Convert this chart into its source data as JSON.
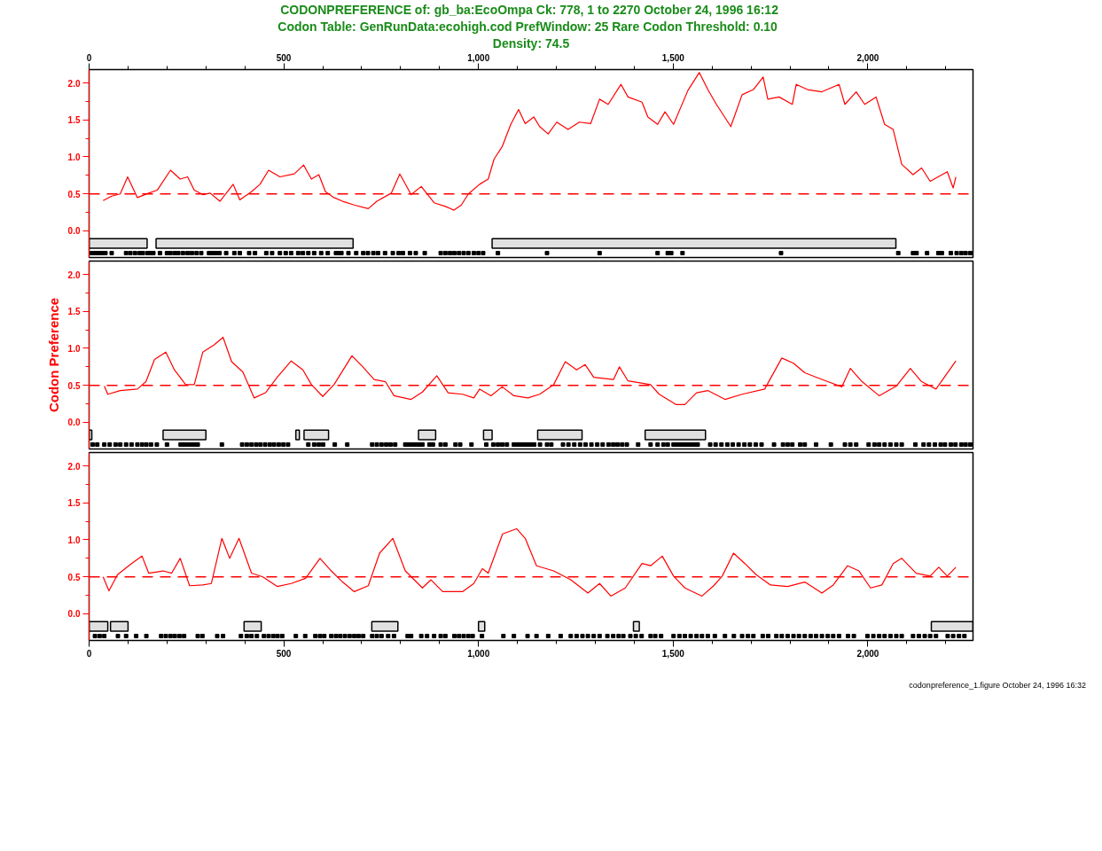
{
  "chart_data": [
    {
      "type": "line",
      "title": "CODONPREFERENCE of: gb_ba:EcoOmpa Ck: 778, 1 to 2270  October 24, 1996 16:12",
      "subtitle": "Codon Table: GenRunData:ecohigh.cod  PrefWindow: 25  Rare Codon Threshold: 0.10",
      "annotations": [
        "Density: 74.5"
      ],
      "xlim": [
        0,
        2270
      ],
      "x2lim": [
        0,
        2270
      ],
      "x2ticks": [
        0,
        {
          "value": 100,
          "label": null
        },
        {
          "value": 200,
          "label": null
        },
        {
          "value": 300,
          "label": null
        },
        {
          "value": 400,
          "label": null
        },
        500,
        {
          "value": 600,
          "label": null
        },
        {
          "value": 700,
          "label": null
        },
        {
          "value": 800,
          "label": null
        },
        {
          "value": 900,
          "label": null
        },
        {
          "value": 1000,
          "label": "1,000"
        },
        {
          "value": 1100,
          "label": null
        },
        {
          "value": 1200,
          "label": null
        },
        {
          "value": 1300,
          "label": null
        },
        {
          "value": 1400,
          "label": null
        },
        {
          "value": 1500,
          "label": "1,500"
        },
        {
          "value": 1600,
          "label": null
        },
        {
          "value": 1700,
          "label": null
        },
        {
          "value": 1800,
          "label": null
        },
        {
          "value": 1900,
          "label": null
        },
        {
          "value": 2000,
          "label": "2,000"
        },
        {
          "value": 2100,
          "label": null
        },
        {
          "value": 2200,
          "label": null
        }
      ],
      "ylim": [
        -0.36,
        2.18
      ],
      "yticks": [
        {
          "value": 0,
          "label": "0.0"
        },
        {
          "value": 0.25,
          "label": null
        },
        {
          "value": 0.5,
          "label": "0.5"
        },
        {
          "value": 0.75,
          "label": null
        },
        {
          "value": 1,
          "label": "1.0"
        },
        {
          "value": 1.25,
          "label": null
        },
        {
          "value": 1.5,
          "label": "1.5"
        },
        {
          "value": 1.75,
          "label": null
        },
        {
          "value": 2,
          "label": "2.0"
        }
      ],
      "ref_lines": [
        {
          "axis": "y",
          "value": 0.5,
          "color": "#ff0000",
          "line_style": "dashed"
        }
      ],
      "bands": [
        {
          "axis": "x",
          "from": 0,
          "to": 149,
          "color": "#000000"
        },
        {
          "axis": "x",
          "from": 172,
          "to": 678,
          "color": "#000000"
        },
        {
          "axis": "x",
          "from": 1035,
          "to": 2072,
          "color": "#000000"
        }
      ],
      "series": [
        {
          "type": "line",
          "color": "#ff0000",
          "x": [
            36,
            58,
            80,
            99,
            124,
            153,
            175,
            209,
            234,
            253,
            270,
            292,
            311,
            336,
            370,
            387,
            417,
            439,
            461,
            490,
            527,
            551,
            571,
            590,
            607,
            629,
            651,
            681,
            717,
            739,
            776,
            798,
            827,
            853,
            886,
            915,
            937,
            956,
            974,
            1003,
            1025,
            1040,
            1061,
            1083,
            1103,
            1120,
            1142,
            1157,
            1179,
            1201,
            1230,
            1259,
            1288,
            1311,
            1333,
            1366,
            1384,
            1420,
            1435,
            1460,
            1479,
            1501,
            1538,
            1567,
            1589,
            1611,
            1648,
            1677,
            1706,
            1731,
            1743,
            1772,
            1806,
            1816,
            1845,
            1882,
            1926,
            1941,
            1970,
            1992,
            2021,
            2043,
            2065,
            2087,
            2116,
            2138,
            2160,
            2204,
            2219,
            2226
          ],
          "values": [
            0.41,
            0.47,
            0.5,
            0.73,
            0.45,
            0.51,
            0.55,
            0.82,
            0.7,
            0.73,
            0.55,
            0.49,
            0.51,
            0.4,
            0.63,
            0.42,
            0.53,
            0.63,
            0.82,
            0.73,
            0.77,
            0.89,
            0.7,
            0.76,
            0.53,
            0.45,
            0.4,
            0.35,
            0.3,
            0.4,
            0.51,
            0.77,
            0.49,
            0.6,
            0.38,
            0.33,
            0.28,
            0.35,
            0.5,
            0.63,
            0.7,
            0.97,
            1.14,
            1.44,
            1.64,
            1.45,
            1.54,
            1.41,
            1.31,
            1.47,
            1.37,
            1.47,
            1.45,
            1.78,
            1.71,
            1.98,
            1.81,
            1.74,
            1.54,
            1.44,
            1.61,
            1.44,
            1.9,
            2.14,
            1.91,
            1.71,
            1.41,
            1.84,
            1.91,
            2.08,
            1.78,
            1.81,
            1.71,
            1.98,
            1.91,
            1.88,
            1.98,
            1.71,
            1.88,
            1.71,
            1.81,
            1.44,
            1.37,
            0.9,
            0.76,
            0.85,
            0.67,
            0.8,
            0.58,
            0.73
          ]
        },
        {
          "type": "scatter",
          "marker": "square",
          "color": "#000000",
          "x": [
            7,
            15,
            24,
            33,
            42,
            58,
            95,
            106,
            118,
            130,
            138,
            150,
            156,
            165,
            182,
            200,
            209,
            220,
            229,
            241,
            253,
            264,
            276,
            288,
            308,
            317,
            326,
            335,
            352,
            373,
            387,
            411,
            426,
            455,
            470,
            490,
            505,
            519,
            537,
            549,
            563,
            578,
            596,
            613,
            634,
            640,
            648,
            666,
            686,
            704,
            716,
            730,
            742,
            760,
            780,
            795,
            806,
            824,
            839,
            862,
            903,
            915,
            927,
            938,
            950,
            962,
            974,
            988,
            1000,
            1012,
            1050,
            1176,
            1311,
            1460,
            1486,
            1495,
            1524,
            1777,
            2078,
            2116,
            2125,
            2152,
            2181,
            2190,
            2213,
            2228,
            2240,
            2251,
            2263
          ],
          "values": [
            -0.3,
            -0.3,
            -0.3,
            -0.3,
            -0.3,
            -0.3,
            -0.3,
            -0.3,
            -0.3,
            -0.3,
            -0.3,
            -0.3,
            -0.3,
            -0.3,
            -0.3,
            -0.3,
            -0.3,
            -0.3,
            -0.3,
            -0.3,
            -0.3,
            -0.3,
            -0.3,
            -0.3,
            -0.3,
            -0.3,
            -0.3,
            -0.3,
            -0.3,
            -0.3,
            -0.3,
            -0.3,
            -0.3,
            -0.3,
            -0.3,
            -0.3,
            -0.3,
            -0.3,
            -0.3,
            -0.3,
            -0.3,
            -0.3,
            -0.3,
            -0.3,
            -0.3,
            -0.3,
            -0.3,
            -0.3,
            -0.3,
            -0.3,
            -0.3,
            -0.3,
            -0.3,
            -0.3,
            -0.3,
            -0.3,
            -0.3,
            -0.3,
            -0.3,
            -0.3,
            -0.3,
            -0.3,
            -0.3,
            -0.3,
            -0.3,
            -0.3,
            -0.3,
            -0.3,
            -0.3,
            -0.3,
            -0.3,
            -0.3,
            -0.3,
            -0.3,
            -0.3,
            -0.3,
            -0.3,
            -0.3,
            -0.3,
            -0.3,
            -0.3,
            -0.3,
            -0.3,
            -0.3,
            -0.3,
            -0.3,
            -0.3,
            -0.3,
            -0.3
          ]
        }
      ]
    },
    {
      "type": "line",
      "ylabel": "Codon Preference",
      "tick_labels": "y",
      "xlim": [
        0,
        2270
      ],
      "ylim": [
        -0.36,
        2.18
      ],
      "yticks": [
        {
          "value": 0,
          "label": "0.0"
        },
        {
          "value": 0.25,
          "label": null
        },
        {
          "value": 0.5,
          "label": "0.5"
        },
        {
          "value": 0.75,
          "label": null
        },
        {
          "value": 1,
          "label": "1.0"
        },
        {
          "value": 1.25,
          "label": null
        },
        {
          "value": 1.5,
          "label": "1.5"
        },
        {
          "value": 1.75,
          "label": null
        },
        {
          "value": 2,
          "label": "2.0"
        }
      ],
      "ref_lines": [
        {
          "axis": "y",
          "value": 0.5,
          "color": "#ff0000",
          "line_style": "dashed"
        }
      ],
      "bands": [
        {
          "axis": "x",
          "from": 0,
          "to": 7,
          "color": "#000000"
        },
        {
          "axis": "x",
          "from": 190,
          "to": 300,
          "color": "#000000"
        },
        {
          "axis": "x",
          "from": 531,
          "to": 540,
          "color": "#000000"
        },
        {
          "axis": "x",
          "from": 552,
          "to": 615,
          "color": "#000000"
        },
        {
          "axis": "x",
          "from": 846,
          "to": 890,
          "color": "#000000"
        },
        {
          "axis": "x",
          "from": 1013,
          "to": 1035,
          "color": "#000000"
        },
        {
          "axis": "x",
          "from": 1152,
          "to": 1266,
          "color": "#000000"
        },
        {
          "axis": "x",
          "from": 1428,
          "to": 1583,
          "color": "#000000"
        }
      ],
      "series": [
        {
          "type": "line",
          "color": "#ff0000",
          "x": [
            39,
            48,
            80,
            124,
            146,
            168,
            197,
            219,
            248,
            270,
            292,
            322,
            344,
            366,
            395,
            424,
            453,
            483,
            519,
            549,
            571,
            600,
            629,
            675,
            703,
            732,
            761,
            783,
            827,
            856,
            893,
            922,
            959,
            988,
            1003,
            1032,
            1061,
            1091,
            1127,
            1157,
            1193,
            1223,
            1252,
            1274,
            1296,
            1347,
            1362,
            1384,
            1442,
            1464,
            1508,
            1530,
            1560,
            1589,
            1633,
            1677,
            1735,
            1779,
            1809,
            1838,
            1867,
            1897,
            1933,
            1955,
            1985,
            2029,
            2073,
            2109,
            2138,
            2175,
            2226
          ],
          "values": [
            0.49,
            0.38,
            0.43,
            0.45,
            0.55,
            0.85,
            0.95,
            0.71,
            0.51,
            0.51,
            0.95,
            1.05,
            1.15,
            0.82,
            0.68,
            0.33,
            0.4,
            0.61,
            0.83,
            0.71,
            0.51,
            0.35,
            0.51,
            0.9,
            0.75,
            0.58,
            0.55,
            0.36,
            0.31,
            0.41,
            0.63,
            0.4,
            0.38,
            0.33,
            0.45,
            0.36,
            0.48,
            0.36,
            0.33,
            0.38,
            0.51,
            0.82,
            0.71,
            0.78,
            0.61,
            0.58,
            0.75,
            0.56,
            0.51,
            0.38,
            0.24,
            0.24,
            0.4,
            0.43,
            0.31,
            0.38,
            0.45,
            0.87,
            0.8,
            0.67,
            0.61,
            0.55,
            0.48,
            0.73,
            0.55,
            0.36,
            0.49,
            0.73,
            0.55,
            0.45,
            0.83
          ]
        },
        {
          "type": "scatter",
          "marker": "square",
          "color": "#000000",
          "x": [
            9,
            21,
            39,
            53,
            68,
            80,
            95,
            109,
            124,
            136,
            147,
            159,
            174,
            200,
            235,
            244,
            253,
            262,
            270,
            279,
            341,
            393,
            405,
            417,
            429,
            440,
            452,
            464,
            475,
            487,
            499,
            511,
            563,
            578,
            590,
            601,
            631,
            663,
            727,
            739,
            751,
            763,
            774,
            786,
            812,
            821,
            830,
            839,
            848,
            856,
            874,
            883,
            903,
            915,
            941,
            953,
            982,
            1020,
            1038,
            1050,
            1061,
            1073,
            1091,
            1100,
            1108,
            1117,
            1126,
            1135,
            1143,
            1158,
            1176,
            1187,
            1217,
            1231,
            1246,
            1261,
            1275,
            1290,
            1305,
            1319,
            1334,
            1346,
            1357,
            1369,
            1381,
            1410,
            1442,
            1460,
            1475,
            1486,
            1501,
            1510,
            1519,
            1527,
            1536,
            1545,
            1554,
            1563,
            1595,
            1609,
            1624,
            1639,
            1653,
            1668,
            1683,
            1697,
            1712,
            1727,
            1759,
            1782,
            1794,
            1806,
            1826,
            1838,
            1867,
            1905,
            1941,
            1955,
            1970,
            2002,
            2017,
            2029,
            2043,
            2058,
            2073,
            2087,
            2122,
            2143,
            2157,
            2172,
            2187,
            2198,
            2213,
            2225,
            2240,
            2251,
            2263
          ],
          "values": [
            -0.3,
            -0.3,
            -0.3,
            -0.3,
            -0.3,
            -0.3,
            -0.3,
            -0.3,
            -0.3,
            -0.3,
            -0.3,
            -0.3,
            -0.3,
            -0.3,
            -0.3,
            -0.3,
            -0.3,
            -0.3,
            -0.3,
            -0.3,
            -0.3,
            -0.3,
            -0.3,
            -0.3,
            -0.3,
            -0.3,
            -0.3,
            -0.3,
            -0.3,
            -0.3,
            -0.3,
            -0.3,
            -0.3,
            -0.3,
            -0.3,
            -0.3,
            -0.3,
            -0.3,
            -0.3,
            -0.3,
            -0.3,
            -0.3,
            -0.3,
            -0.3,
            -0.3,
            -0.3,
            -0.3,
            -0.3,
            -0.3,
            -0.3,
            -0.3,
            -0.3,
            -0.3,
            -0.3,
            -0.3,
            -0.3,
            -0.3,
            -0.3,
            -0.3,
            -0.3,
            -0.3,
            -0.3,
            -0.3,
            -0.3,
            -0.3,
            -0.3,
            -0.3,
            -0.3,
            -0.3,
            -0.3,
            -0.3,
            -0.3,
            -0.3,
            -0.3,
            -0.3,
            -0.3,
            -0.3,
            -0.3,
            -0.3,
            -0.3,
            -0.3,
            -0.3,
            -0.3,
            -0.3,
            -0.3,
            -0.3,
            -0.3,
            -0.3,
            -0.3,
            -0.3,
            -0.3,
            -0.3,
            -0.3,
            -0.3,
            -0.3,
            -0.3,
            -0.3,
            -0.3,
            -0.3,
            -0.3,
            -0.3,
            -0.3,
            -0.3,
            -0.3,
            -0.3,
            -0.3,
            -0.3,
            -0.3,
            -0.3,
            -0.3,
            -0.3,
            -0.3,
            -0.3,
            -0.3,
            -0.3,
            -0.3,
            -0.3,
            -0.3,
            -0.3,
            -0.3,
            -0.3,
            -0.3,
            -0.3,
            -0.3,
            -0.3,
            -0.3,
            -0.3,
            -0.3,
            -0.3,
            -0.3,
            -0.3,
            -0.3,
            -0.3,
            -0.3,
            -0.3,
            -0.3,
            -0.3
          ]
        }
      ]
    },
    {
      "type": "line",
      "xlim": [
        0,
        2270
      ],
      "xticks": [
        0,
        {
          "value": 100,
          "label": null
        },
        {
          "value": 200,
          "label": null
        },
        {
          "value": 300,
          "label": null
        },
        {
          "value": 400,
          "label": null
        },
        500,
        {
          "value": 600,
          "label": null
        },
        {
          "value": 700,
          "label": null
        },
        {
          "value": 800,
          "label": null
        },
        {
          "value": 900,
          "label": null
        },
        {
          "value": 1000,
          "label": "1,000"
        },
        {
          "value": 1100,
          "label": null
        },
        {
          "value": 1200,
          "label": null
        },
        {
          "value": 1300,
          "label": null
        },
        {
          "value": 1400,
          "label": null
        },
        {
          "value": 1500,
          "label": "1,500"
        },
        {
          "value": 1600,
          "label": null
        },
        {
          "value": 1700,
          "label": null
        },
        {
          "value": 1800,
          "label": null
        },
        {
          "value": 1900,
          "label": null
        },
        {
          "value": 2000,
          "label": "2,000"
        },
        {
          "value": 2100,
          "label": null
        },
        {
          "value": 2200,
          "label": null
        }
      ],
      "ylim": [
        -0.36,
        2.18
      ],
      "yticks": [
        {
          "value": 0,
          "label": "0.0"
        },
        {
          "value": 0.25,
          "label": null
        },
        {
          "value": 0.5,
          "label": "0.5"
        },
        {
          "value": 0.75,
          "label": null
        },
        {
          "value": 1,
          "label": "1.0"
        },
        {
          "value": 1.25,
          "label": null
        },
        {
          "value": 1.5,
          "label": "1.5"
        },
        {
          "value": 1.75,
          "label": null
        },
        {
          "value": 2,
          "label": "2.0"
        }
      ],
      "ref_lines": [
        {
          "axis": "y",
          "value": 0.5,
          "color": "#ff0000",
          "line_style": "dashed"
        }
      ],
      "bands": [
        {
          "axis": "x",
          "from": 0,
          "to": 48,
          "color": "#000000"
        },
        {
          "axis": "x",
          "from": 55,
          "to": 100,
          "color": "#000000"
        },
        {
          "axis": "x",
          "from": 398,
          "to": 442,
          "color": "#000000"
        },
        {
          "axis": "x",
          "from": 726,
          "to": 793,
          "color": "#000000"
        },
        {
          "axis": "x",
          "from": 1000,
          "to": 1016,
          "color": "#000000"
        },
        {
          "axis": "x",
          "from": 1398,
          "to": 1413,
          "color": "#000000"
        },
        {
          "axis": "x",
          "from": 2163,
          "to": 2270,
          "color": "#000000"
        }
      ],
      "series": [
        {
          "type": "line",
          "color": "#ff0000",
          "x": [
            36,
            51,
            73,
            109,
            136,
            153,
            190,
            212,
            234,
            258,
            292,
            314,
            341,
            361,
            385,
            417,
            446,
            483,
            519,
            556,
            593,
            622,
            651,
            681,
            717,
            746,
            780,
            812,
            856,
            878,
            908,
            959,
            988,
            1010,
            1025,
            1062,
            1098,
            1120,
            1149,
            1193,
            1237,
            1281,
            1311,
            1340,
            1377,
            1420,
            1442,
            1472,
            1501,
            1530,
            1574,
            1604,
            1626,
            1655,
            1684,
            1713,
            1750,
            1794,
            1838,
            1882,
            1911,
            1948,
            1977,
            2007,
            2036,
            2065,
            2087,
            2124,
            2160,
            2182,
            2204,
            2226
          ],
          "values": [
            0.5,
            0.31,
            0.53,
            0.68,
            0.78,
            0.55,
            0.58,
            0.55,
            0.75,
            0.38,
            0.39,
            0.41,
            1.02,
            0.75,
            1.02,
            0.55,
            0.5,
            0.37,
            0.41,
            0.48,
            0.75,
            0.58,
            0.43,
            0.3,
            0.38,
            0.82,
            1.02,
            0.58,
            0.35,
            0.46,
            0.3,
            0.3,
            0.41,
            0.61,
            0.55,
            1.08,
            1.15,
            1.02,
            0.65,
            0.58,
            0.46,
            0.28,
            0.41,
            0.24,
            0.35,
            0.68,
            0.65,
            0.78,
            0.51,
            0.35,
            0.24,
            0.38,
            0.51,
            0.82,
            0.68,
            0.53,
            0.39,
            0.37,
            0.43,
            0.28,
            0.39,
            0.65,
            0.58,
            0.35,
            0.39,
            0.68,
            0.75,
            0.55,
            0.51,
            0.63,
            0.51,
            0.63
          ]
        },
        {
          "type": "scatter",
          "marker": "square",
          "color": "#000000",
          "x": [
            15,
            27,
            39,
            74,
            95,
            121,
            147,
            185,
            197,
            209,
            220,
            232,
            244,
            279,
            291,
            329,
            344,
            390,
            405,
            417,
            431,
            449,
            461,
            473,
            484,
            496,
            531,
            555,
            581,
            593,
            604,
            622,
            634,
            645,
            657,
            669,
            681,
            692,
            704,
            727,
            739,
            751,
            768,
            783,
            818,
            827,
            853,
            868,
            886,
            903,
            915,
            938,
            950,
            962,
            974,
            985,
            1009,
            1064,
            1091,
            1126,
            1149,
            1179,
            1211,
            1237,
            1252,
            1267,
            1281,
            1296,
            1311,
            1331,
            1346,
            1360,
            1372,
            1390,
            1404,
            1419,
            1442,
            1454,
            1469,
            1501,
            1516,
            1530,
            1545,
            1560,
            1574,
            1589,
            1607,
            1633,
            1656,
            1677,
            1692,
            1706,
            1730,
            1744,
            1765,
            1779,
            1794,
            1809,
            1823,
            1838,
            1853,
            1867,
            1882,
            1897,
            1911,
            1926,
            1949,
            1964,
            1999,
            2014,
            2029,
            2043,
            2058,
            2073,
            2087,
            2116,
            2131,
            2146,
            2160,
            2175,
            2205,
            2219,
            2234,
            2248
          ],
          "values": [
            -0.3,
            -0.3,
            -0.3,
            -0.3,
            -0.3,
            -0.3,
            -0.3,
            -0.3,
            -0.3,
            -0.3,
            -0.3,
            -0.3,
            -0.3,
            -0.3,
            -0.3,
            -0.3,
            -0.3,
            -0.3,
            -0.3,
            -0.3,
            -0.3,
            -0.3,
            -0.3,
            -0.3,
            -0.3,
            -0.3,
            -0.3,
            -0.3,
            -0.3,
            -0.3,
            -0.3,
            -0.3,
            -0.3,
            -0.3,
            -0.3,
            -0.3,
            -0.3,
            -0.3,
            -0.3,
            -0.3,
            -0.3,
            -0.3,
            -0.3,
            -0.3,
            -0.3,
            -0.3,
            -0.3,
            -0.3,
            -0.3,
            -0.3,
            -0.3,
            -0.3,
            -0.3,
            -0.3,
            -0.3,
            -0.3,
            -0.3,
            -0.3,
            -0.3,
            -0.3,
            -0.3,
            -0.3,
            -0.3,
            -0.3,
            -0.3,
            -0.3,
            -0.3,
            -0.3,
            -0.3,
            -0.3,
            -0.3,
            -0.3,
            -0.3,
            -0.3,
            -0.3,
            -0.3,
            -0.3,
            -0.3,
            -0.3,
            -0.3,
            -0.3,
            -0.3,
            -0.3,
            -0.3,
            -0.3,
            -0.3,
            -0.3,
            -0.3,
            -0.3,
            -0.3,
            -0.3,
            -0.3,
            -0.3,
            -0.3,
            -0.3,
            -0.3,
            -0.3,
            -0.3,
            -0.3,
            -0.3,
            -0.3,
            -0.3,
            -0.3,
            -0.3,
            -0.3,
            -0.3,
            -0.3,
            -0.3,
            -0.3,
            -0.3,
            -0.3,
            -0.3,
            -0.3,
            -0.3,
            -0.3,
            -0.3,
            -0.3,
            -0.3,
            -0.3,
            -0.3,
            -0.3,
            -0.3,
            -0.3,
            -0.3
          ]
        }
      ]
    },
    {
      "type": "other",
      "annotations": [
        "codonpreference_1.figure  October 24, 1996 16:32"
      ]
    }
  ]
}
